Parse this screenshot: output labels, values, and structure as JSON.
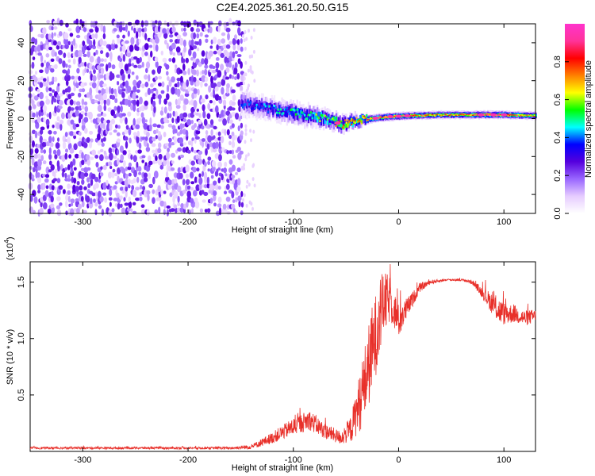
{
  "title": "C2E4.2025.361.20.50.G15",
  "chart_data": [
    {
      "type": "heatmap",
      "name": "spectrogram",
      "xlabel": "Height of straight line (km)",
      "ylabel": "Frequency (Hz)",
      "xlim": [
        -350,
        130
      ],
      "ylim": [
        -50,
        50
      ],
      "xticks": [
        "-300",
        "-200",
        "-100",
        "0",
        "100"
      ],
      "xtick_values": [
        -300,
        -200,
        -100,
        0,
        100
      ],
      "yticks": [
        "-40",
        "-20",
        "0",
        "20",
        "40"
      ],
      "ytick_values": [
        -40,
        -20,
        0,
        20,
        40
      ],
      "colorbar": {
        "label": "Normalized spectral amplitude",
        "range": [
          0,
          1
        ],
        "ticks": [
          "0.0",
          "0.2",
          "0.4",
          "0.6",
          "0.8"
        ],
        "tick_values": [
          0,
          0.2,
          0.4,
          0.6,
          0.8
        ],
        "colors": [
          "#ffffff",
          "#e6ccff",
          "#9966ff",
          "#5500dd",
          "#0000ff",
          "#00ffff",
          "#00ff00",
          "#ffff00",
          "#ff8000",
          "#ff0000",
          "#ff3399",
          "#ff33cc"
        ]
      },
      "noise_region": {
        "x_from": -350,
        "x_to": -148,
        "amplitude": 0.25
      },
      "signal_track": [
        {
          "x": -150,
          "f": 8,
          "width": 6,
          "amp": 0.3
        },
        {
          "x": -130,
          "f": 6,
          "width": 5,
          "amp": 0.35
        },
        {
          "x": -110,
          "f": 4,
          "width": 5,
          "amp": 0.4
        },
        {
          "x": -90,
          "f": 2,
          "width": 5,
          "amp": 0.45
        },
        {
          "x": -70,
          "f": 0,
          "width": 4,
          "amp": 0.5
        },
        {
          "x": -55,
          "f": -3,
          "width": 4,
          "amp": 0.6
        },
        {
          "x": -40,
          "f": -1,
          "width": 3,
          "amp": 0.65
        },
        {
          "x": -25,
          "f": 0,
          "width": 2,
          "amp": 0.7
        },
        {
          "x": -10,
          "f": 1,
          "width": 2,
          "amp": 0.75
        },
        {
          "x": 10,
          "f": 1.5,
          "width": 2,
          "amp": 0.7
        },
        {
          "x": 40,
          "f": 2,
          "width": 2,
          "amp": 0.65
        },
        {
          "x": 70,
          "f": 2,
          "width": 2,
          "amp": 0.7
        },
        {
          "x": 100,
          "f": 2,
          "width": 2,
          "amp": 0.75
        },
        {
          "x": 130,
          "f": 1.5,
          "width": 2,
          "amp": 0.6
        }
      ]
    },
    {
      "type": "line",
      "name": "snr",
      "xlabel": "Height of straight line (km)",
      "ylabel": "SNR (10 * v/v)",
      "y_multiplier": "(x10",
      "y_multiplier_exp": "4",
      "xlim": [
        -350,
        130
      ],
      "ylim": [
        0,
        1.68
      ],
      "xticks": [
        "-300",
        "-200",
        "-100",
        "0",
        "100"
      ],
      "xtick_values": [
        -300,
        -200,
        -100,
        0,
        100
      ],
      "yticks": [
        "0.5",
        "1.0",
        "1.5"
      ],
      "ytick_values": [
        0.5,
        1.0,
        1.5
      ],
      "color": "#e8302a",
      "series": [
        {
          "name": "SNR envelope",
          "x": [
            -350,
            -300,
            -250,
            -200,
            -160,
            -140,
            -120,
            -100,
            -85,
            -70,
            -55,
            -45,
            -35,
            -25,
            -15,
            -8,
            0,
            10,
            20,
            30,
            45,
            60,
            70,
            80,
            90,
            95,
            100,
            110,
            120,
            130
          ],
          "y": [
            0.03,
            0.03,
            0.03,
            0.03,
            0.03,
            0.04,
            0.12,
            0.22,
            0.28,
            0.18,
            0.12,
            0.2,
            0.5,
            0.9,
            1.3,
            1.35,
            1.15,
            1.3,
            1.45,
            1.5,
            1.52,
            1.52,
            1.5,
            1.4,
            1.3,
            1.25,
            1.22,
            1.22,
            1.18,
            1.2
          ],
          "noise": [
            0.01,
            0.01,
            0.01,
            0.01,
            0.01,
            0.02,
            0.05,
            0.08,
            0.09,
            0.07,
            0.06,
            0.12,
            0.3,
            0.4,
            0.3,
            0.2,
            0.15,
            0.08,
            0.04,
            0.02,
            0.01,
            0.01,
            0.02,
            0.05,
            0.1,
            0.12,
            0.1,
            0.08,
            0.07,
            0.06
          ]
        }
      ]
    }
  ]
}
